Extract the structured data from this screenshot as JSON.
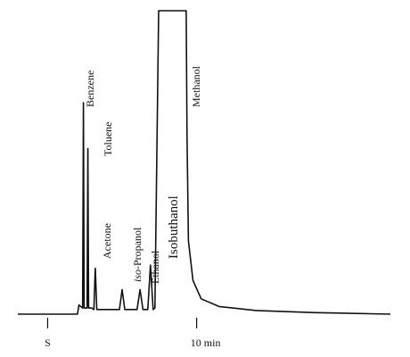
{
  "chart_data": {
    "type": "line",
    "x_tick_labels": [
      "S",
      "10 min"
    ],
    "x_tick_values": [
      0,
      10
    ],
    "xlim": [
      -2,
      23
    ],
    "ylim": [
      0,
      100
    ],
    "baseline": 1,
    "peaks": [
      {
        "name": "Benzene",
        "time": 2.4,
        "height": 70,
        "rotated": true,
        "size": "normal",
        "italic_prefix": ""
      },
      {
        "name": "Toluene",
        "time": 2.7,
        "height": 55,
        "rotated": false,
        "size": "normal",
        "italic_prefix": ""
      },
      {
        "name": "Acetone",
        "time": 3.2,
        "height": 16,
        "rotated": true,
        "size": "normal",
        "italic_prefix": ""
      },
      {
        "name": "-Propanol",
        "time": 5.0,
        "height": 9,
        "rotated": true,
        "size": "normal",
        "italic_prefix": "iso"
      },
      {
        "name": "Ethanol",
        "time": 6.2,
        "height": 9,
        "rotated": true,
        "size": "normal",
        "italic_prefix": ""
      },
      {
        "name": "Isobuthanol",
        "time": 6.9,
        "height": 17,
        "rotated": true,
        "size": "large",
        "italic_prefix": ""
      },
      {
        "name": "Methanol",
        "time": 8.5,
        "height": 100,
        "rotated": true,
        "size": "normal",
        "italic_prefix": ""
      }
    ],
    "title": "",
    "xlabel": "",
    "ylabel": ""
  }
}
